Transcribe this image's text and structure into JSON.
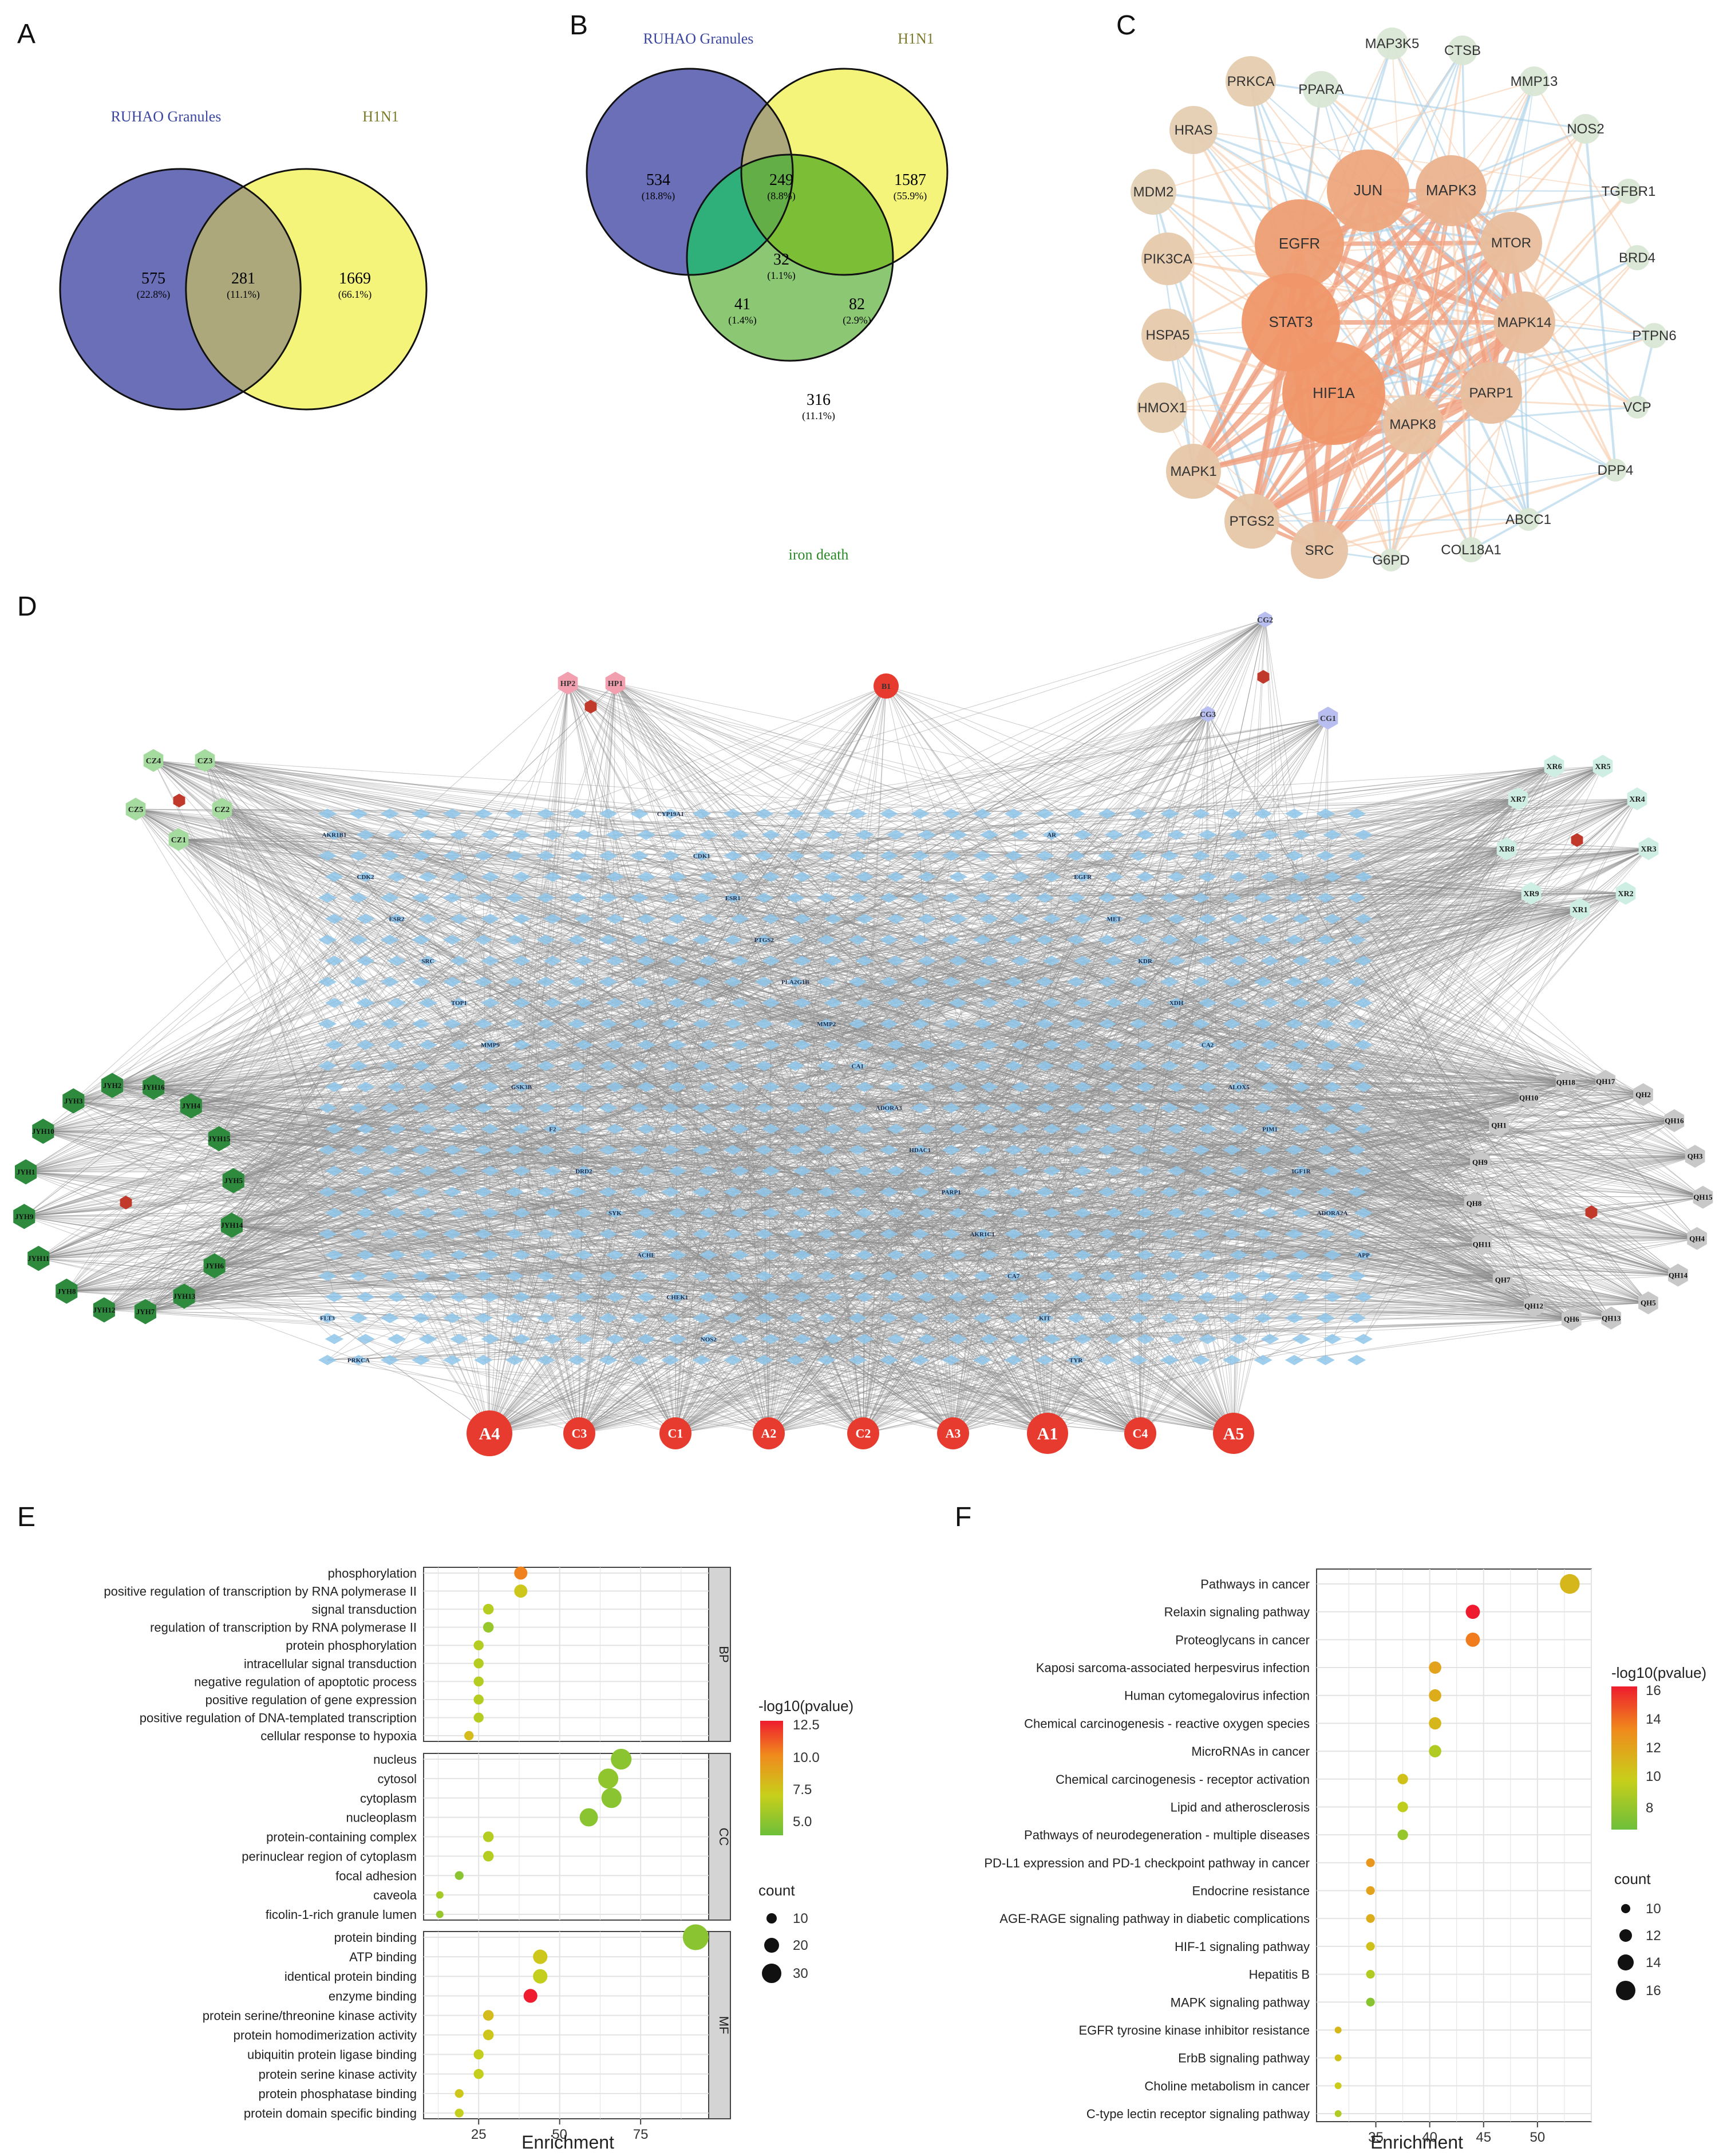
{
  "panels": {
    "A": {
      "label": "A",
      "set1": {
        "name": "RUHAO Granules",
        "color": "#6a6fb8"
      },
      "set2": {
        "name": "H1N1",
        "color": "#f4f37a"
      },
      "regions": [
        {
          "count": "575",
          "pct": "(22.8%)"
        },
        {
          "count": "281",
          "pct": "(11.1%)"
        },
        {
          "count": "1669",
          "pct": "(66.1%)"
        }
      ]
    },
    "B": {
      "label": "B",
      "set1": {
        "name": "RUHAO Granules",
        "color": "#6a6fb8"
      },
      "set2": {
        "name": "H1N1",
        "color": "#f4f37a"
      },
      "set3": {
        "name": "iron death",
        "color": "#8cc774"
      },
      "regions": [
        {
          "count": "534",
          "pct": "(18.8%)"
        },
        {
          "count": "249",
          "pct": "(8.8%)"
        },
        {
          "count": "1587",
          "pct": "(55.9%)"
        },
        {
          "count": "32",
          "pct": "(1.1%)"
        },
        {
          "count": "41",
          "pct": "(1.4%)"
        },
        {
          "count": "82",
          "pct": "(2.9%)"
        },
        {
          "count": "316",
          "pct": "(11.1%)"
        }
      ]
    },
    "C": {
      "label": "C",
      "nodes": [
        "PPARA",
        "MAP3K5",
        "CTSB",
        "PRKCA",
        "MMP13",
        "HRAS",
        "NOS2",
        "JUN",
        "MAPK3",
        "TGFBR1",
        "MDM2",
        "EGFR",
        "MTOR",
        "BRD4",
        "PIK3CA",
        "STAT3",
        "MAPK14",
        "PTPN6",
        "HSPA5",
        "HIF1A",
        "PARP1",
        "VCP",
        "HMOX1",
        "MAPK8",
        "DPP4",
        "MAPK1",
        "PTGS2",
        "ABCC1",
        "SRC",
        "G6PD",
        "COL18A1"
      ]
    },
    "D": {
      "label": "D",
      "bottom_nodes": [
        "A4",
        "C3",
        "C1",
        "A2",
        "C2",
        "A3",
        "A1",
        "C4",
        "A5"
      ],
      "top_nodes": [
        "HP2",
        "HP1",
        "B1",
        "CG2",
        "CG3",
        "CG1"
      ],
      "cz_nodes": [
        "CZ4",
        "CZ3",
        "CZ5",
        "CZ2",
        "CZ1"
      ],
      "xr_nodes": [
        "XR6",
        "XR5",
        "XR7",
        "XR4",
        "XR8",
        "XR3",
        "XR9",
        "XR1",
        "XR2"
      ],
      "jyh_nodes": [
        "JYH3",
        "JYH2",
        "JYH16",
        "JYH4",
        "JYH15",
        "JYH5",
        "JYH14",
        "JYH6",
        "JYH13",
        "JYH7",
        "JYH12",
        "JYH8",
        "JYH11",
        "JYH9",
        "JYH1",
        "JYH10"
      ],
      "qh_nodes": [
        "QH18",
        "QH17",
        "QH2",
        "QH16",
        "QH3",
        "QH15",
        "QH4",
        "QH14",
        "QH5",
        "QH13",
        "QH6",
        "QH12",
        "QH7",
        "QH11",
        "QH8",
        "QH9",
        "QH1",
        "QH10"
      ],
      "gene_nodes": [
        "CYP19A1",
        "AKR1B1",
        "AR",
        "CDK1",
        "CDK2",
        "EGFR",
        "ESR1",
        "ESR2",
        "MET",
        "PTGS2",
        "SRC",
        "KDR",
        "PLA2G1B",
        "TOP1",
        "XDH",
        "MMP2",
        "MMP9",
        "CA2",
        "CA1",
        "GSK3B",
        "ALOX5",
        "ADORA3",
        "F2",
        "PIM1",
        "HDAC1",
        "DRD2",
        "IGF1R",
        "PARP1",
        "SYK",
        "ADORA2A",
        "AKR1C1",
        "ACHE",
        "APP",
        "CA7",
        "CHEK1",
        "FLT3",
        "KIT",
        "NOS2",
        "PRKCA",
        "TYR"
      ]
    },
    "E": {
      "label": "E",
      "xlabel": "Enrichment",
      "facets": [
        "BP",
        "CC",
        "MF"
      ],
      "legend_color_title": "-log10(pvalue)",
      "legend_color_ticks": [
        "12.5",
        "10.0",
        "7.5",
        "5.0"
      ],
      "legend_size_title": "count",
      "legend_size_ticks": [
        "10",
        "20",
        "30"
      ]
    },
    "F": {
      "label": "F",
      "xlabel": "Enrichment",
      "legend_color_title": "-log10(pvalue)",
      "legend_color_ticks": [
        "16",
        "14",
        "12",
        "10",
        "8"
      ],
      "legend_size_title": "count",
      "legend_size_ticks": [
        "10",
        "12",
        "14",
        "16"
      ]
    }
  },
  "chart_data": [
    {
      "type": "scatter",
      "panel": "E",
      "xlabel": "Enrichment",
      "xlim": [
        8,
        96
      ],
      "xticks": [
        25,
        50,
        75
      ],
      "color_scale": {
        "title": "-log10(pvalue)",
        "min": 4,
        "max": 13
      },
      "groups": [
        {
          "facet": "BP",
          "terms": [
            {
              "term": "phosphorylation",
              "enrichment": 38,
              "log10p": 10.5,
              "count": 14
            },
            {
              "term": "positive regulation of transcription by RNA polymerase II",
              "enrichment": 38,
              "log10p": 7.5,
              "count": 14
            },
            {
              "term": "signal transduction",
              "enrichment": 28,
              "log10p": 6.5,
              "count": 10
            },
            {
              "term": "regulation of transcription by RNA polymerase II",
              "enrichment": 28,
              "log10p": 5.5,
              "count": 10
            },
            {
              "term": "protein phosphorylation",
              "enrichment": 25,
              "log10p": 6.5,
              "count": 9
            },
            {
              "term": "intracellular signal transduction",
              "enrichment": 25,
              "log10p": 6.5,
              "count": 9
            },
            {
              "term": "negative regulation of apoptotic process",
              "enrichment": 25,
              "log10p": 6.5,
              "count": 9
            },
            {
              "term": "positive regulation of gene expression",
              "enrichment": 25,
              "log10p": 6.5,
              "count": 9
            },
            {
              "term": "positive regulation of DNA-templated transcription",
              "enrichment": 25,
              "log10p": 6.5,
              "count": 9
            },
            {
              "term": "cellular response to hypoxia",
              "enrichment": 22,
              "log10p": 8.0,
              "count": 8
            }
          ]
        },
        {
          "facet": "CC",
          "terms": [
            {
              "term": "nucleus",
              "enrichment": 69,
              "log10p": 5.0,
              "count": 26
            },
            {
              "term": "cytosol",
              "enrichment": 65,
              "log10p": 5.2,
              "count": 25
            },
            {
              "term": "cytoplasm",
              "enrichment": 66,
              "log10p": 5.0,
              "count": 25
            },
            {
              "term": "nucleoplasm",
              "enrichment": 59,
              "log10p": 5.0,
              "count": 22
            },
            {
              "term": "protein-containing complex",
              "enrichment": 28,
              "log10p": 6.5,
              "count": 10
            },
            {
              "term": "perinuclear region of cytoplasm",
              "enrichment": 28,
              "log10p": 6.5,
              "count": 10
            },
            {
              "term": "focal adhesion",
              "enrichment": 19,
              "log10p": 5.0,
              "count": 7
            },
            {
              "term": "caveola",
              "enrichment": 13,
              "log10p": 6.0,
              "count": 5
            },
            {
              "term": "ficolin-1-rich granule lumen",
              "enrichment": 13,
              "log10p": 5.5,
              "count": 5
            }
          ]
        },
        {
          "facet": "MF",
          "terms": [
            {
              "term": "protein binding",
              "enrichment": 92,
              "log10p": 5.0,
              "count": 34
            },
            {
              "term": "ATP binding",
              "enrichment": 44,
              "log10p": 7.5,
              "count": 16
            },
            {
              "term": "identical protein binding",
              "enrichment": 44,
              "log10p": 7.0,
              "count": 16
            },
            {
              "term": "enzyme binding",
              "enrichment": 41,
              "log10p": 13.0,
              "count": 15
            },
            {
              "term": "protein serine/threonine kinase activity",
              "enrichment": 28,
              "log10p": 8.0,
              "count": 10
            },
            {
              "term": "protein homodimerization activity",
              "enrichment": 28,
              "log10p": 7.5,
              "count": 10
            },
            {
              "term": "ubiquitin protein ligase binding",
              "enrichment": 25,
              "log10p": 7.0,
              "count": 9
            },
            {
              "term": "protein serine kinase activity",
              "enrichment": 25,
              "log10p": 7.0,
              "count": 9
            },
            {
              "term": "protein phosphatase binding",
              "enrichment": 19,
              "log10p": 7.5,
              "count": 7
            },
            {
              "term": "protein domain specific binding",
              "enrichment": 19,
              "log10p": 7.0,
              "count": 7
            }
          ]
        }
      ]
    },
    {
      "type": "scatter",
      "panel": "F",
      "xlabel": "Enrichment",
      "xlim": [
        29.5,
        55
      ],
      "xticks": [
        35,
        40,
        45,
        50
      ],
      "color_scale": {
        "title": "-log10(pvalue)",
        "min": 7,
        "max": 16.5
      },
      "terms": [
        {
          "term": "Pathways in cancer",
          "enrichment": 53,
          "log10p": 11.5,
          "count": 17
        },
        {
          "term": "Relaxin signaling pathway",
          "enrichment": 44,
          "log10p": 16.5,
          "count": 14
        },
        {
          "term": "Proteoglycans in cancer",
          "enrichment": 44,
          "log10p": 14.0,
          "count": 14
        },
        {
          "term": "Kaposi sarcoma-associated herpesvirus infection",
          "enrichment": 40.5,
          "log10p": 12.5,
          "count": 13
        },
        {
          "term": "Human cytomegalovirus infection",
          "enrichment": 40.5,
          "log10p": 12.0,
          "count": 13
        },
        {
          "term": "Chemical carcinogenesis - reactive oxygen species",
          "enrichment": 40.5,
          "log10p": 11.5,
          "count": 13
        },
        {
          "term": "MicroRNAs in cancer",
          "enrichment": 40.5,
          "log10p": 9.5,
          "count": 13
        },
        {
          "term": "Chemical carcinogenesis - receptor activation",
          "enrichment": 37.5,
          "log10p": 11.0,
          "count": 12
        },
        {
          "term": "Lipid and atherosclerosis",
          "enrichment": 37.5,
          "log10p": 10.0,
          "count": 12
        },
        {
          "term": "Pathways of neurodegeneration - multiple diseases",
          "enrichment": 37.5,
          "log10p": 8.5,
          "count": 12
        },
        {
          "term": "PD-L1 expression and PD-1 checkpoint pathway in cancer",
          "enrichment": 34.5,
          "log10p": 13.0,
          "count": 11
        },
        {
          "term": "Endocrine resistance",
          "enrichment": 34.5,
          "log10p": 12.5,
          "count": 11
        },
        {
          "term": "AGE-RAGE signaling pathway in diabetic complications",
          "enrichment": 34.5,
          "log10p": 12.0,
          "count": 11
        },
        {
          "term": "HIF-1 signaling pathway",
          "enrichment": 34.5,
          "log10p": 11.0,
          "count": 11
        },
        {
          "term": "Hepatitis B",
          "enrichment": 34.5,
          "log10p": 9.5,
          "count": 11
        },
        {
          "term": "MAPK signaling pathway",
          "enrichment": 34.5,
          "log10p": 8.0,
          "count": 11
        },
        {
          "term": "EGFR tyrosine kinase inhibitor resistance",
          "enrichment": 31.5,
          "log10p": 11.5,
          "count": 10
        },
        {
          "term": "ErbB signaling pathway",
          "enrichment": 31.5,
          "log10p": 11.0,
          "count": 10
        },
        {
          "term": "Choline metabolism in cancer",
          "enrichment": 31.5,
          "log10p": 10.5,
          "count": 10
        },
        {
          "term": "C-type lectin receptor signaling pathway",
          "enrichment": 31.5,
          "log10p": 9.5,
          "count": 10
        }
      ]
    }
  ]
}
